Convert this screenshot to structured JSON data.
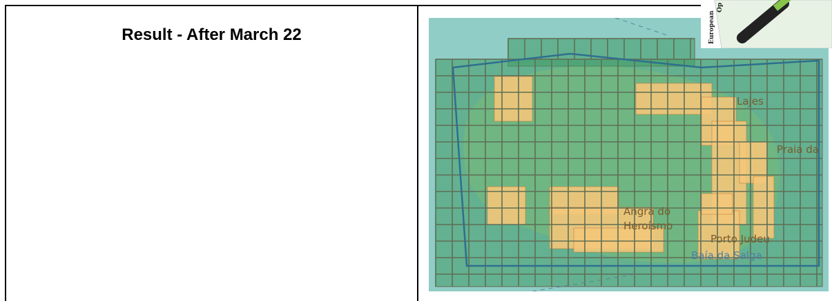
{
  "document": {
    "left_title": "Result - After March 22"
  },
  "map": {
    "labels": {
      "lajes": "Lajes",
      "praia": "Praia da",
      "angra_1": "Angra do",
      "angra_2": "Heroísmo",
      "porto_judeu": "Porto Judeu",
      "baia": "Baía da Salga"
    },
    "colors": {
      "sea": "#8fcdc6",
      "land": "#a9d7a6",
      "grid_green": "#3f9a64",
      "grid_orange": "#f3c77a",
      "boundary": "#2e6f8e",
      "label_text": "#7a5a2b",
      "label_blue": "#4f7fa2"
    }
  },
  "logo": {
    "text_1": "European",
    "text_2": "Op"
  }
}
